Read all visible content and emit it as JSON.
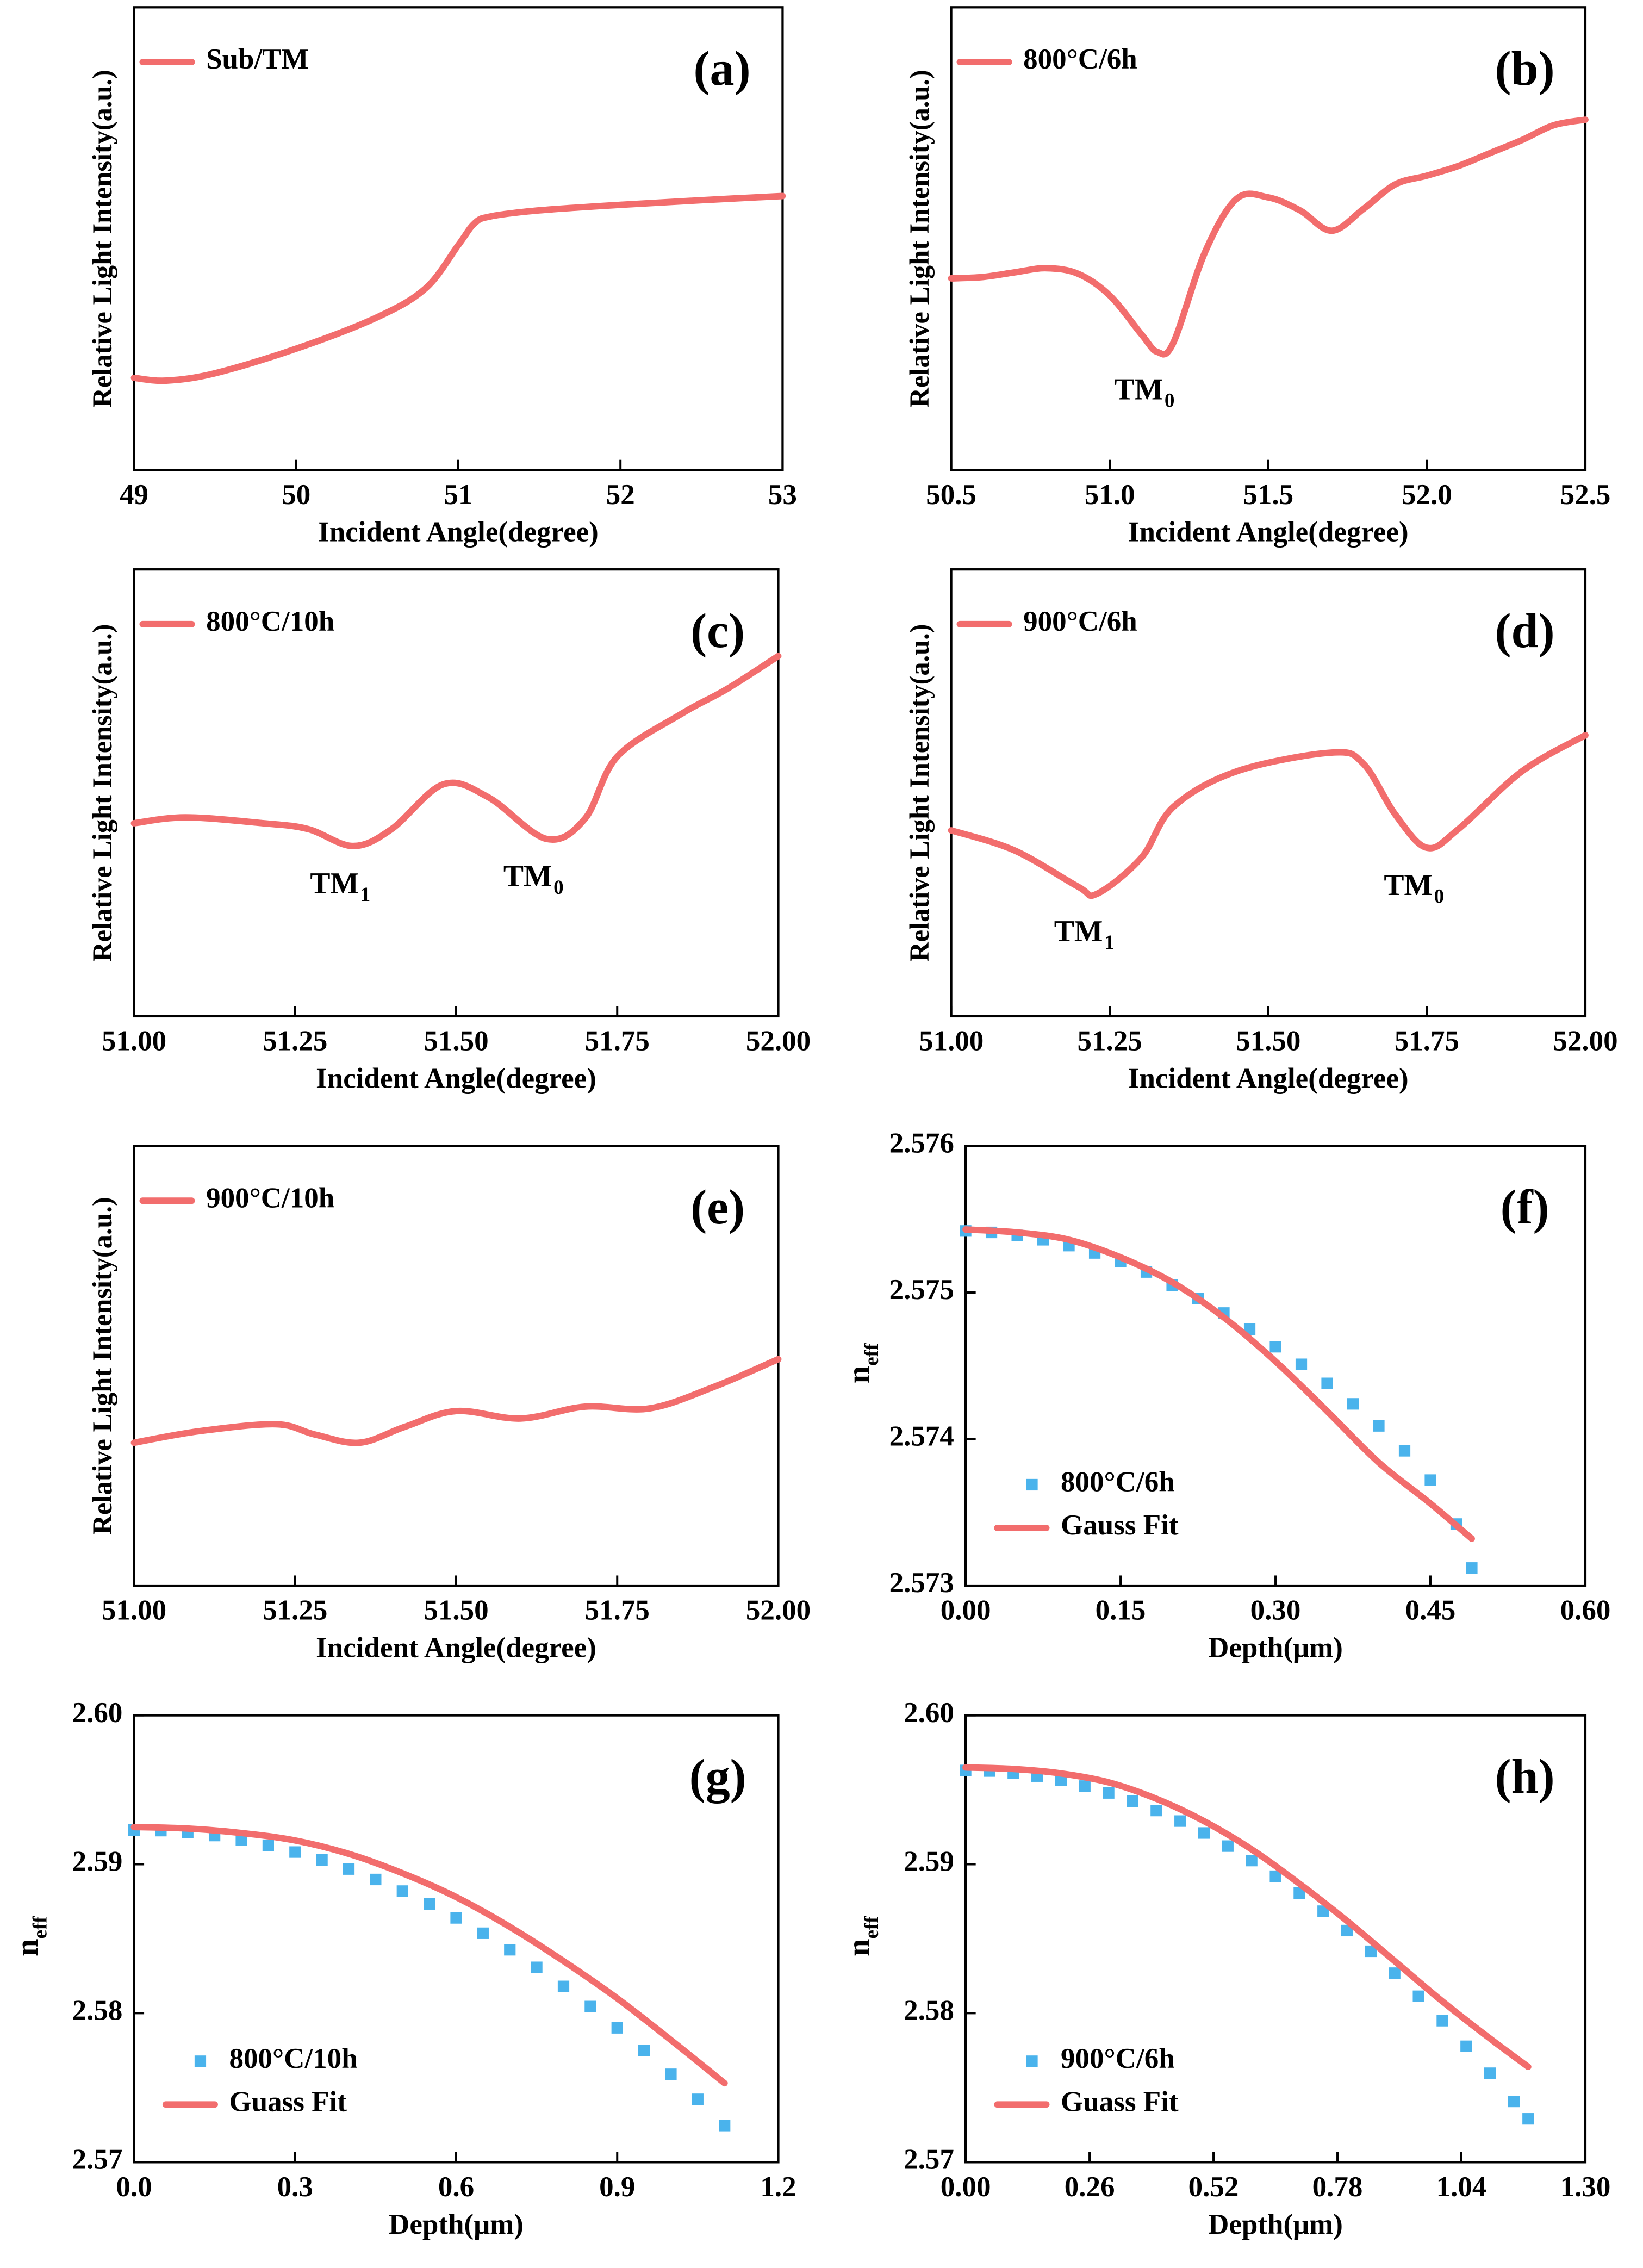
{
  "chart_data": [
    {
      "type": "line",
      "label": "(a)",
      "xlabel": "Incident Angle(degree)",
      "ylabel": "Relative Light Intensity(a.u.)",
      "xlim": [
        49,
        53
      ],
      "xticks": [
        49,
        50,
        51,
        52,
        53
      ],
      "ylim": [
        0,
        1
      ],
      "legend_loc": "upper left",
      "series": [
        {
          "name": "Sub/TM",
          "color": "#f26d6d",
          "style": "line",
          "x": [
            49.0,
            49.2,
            49.5,
            50.0,
            50.5,
            50.8,
            51.0,
            51.1,
            51.2,
            51.5,
            52.0,
            52.5,
            53.0
          ],
          "values": [
            0.199,
            0.193,
            0.209,
            0.262,
            0.33,
            0.393,
            0.486,
            0.533,
            0.548,
            0.561,
            0.573,
            0.583,
            0.592
          ]
        }
      ],
      "annotations": []
    },
    {
      "type": "line",
      "label": "(b)",
      "xlabel": "Incident Angle(degree)",
      "ylabel": "Relative Light Intensity(a.u.)",
      "xlim": [
        50.5,
        52.5
      ],
      "xticks": [
        50.5,
        {
          "value": 51,
          "label": "51.0"
        },
        51.5,
        {
          "value": 52,
          "label": "52.0"
        },
        52.5
      ],
      "ylim": [
        0,
        1
      ],
      "legend_loc": "upper left",
      "series": [
        {
          "name": "800°C/6h",
          "color": "#f26d6d",
          "style": "line",
          "x": [
            50.5,
            50.6,
            50.7,
            50.8,
            50.9,
            51.0,
            51.1,
            51.15,
            51.2,
            51.3,
            51.4,
            51.5,
            51.6,
            51.7,
            51.8,
            51.9,
            52.0,
            52.1,
            52.2,
            52.3,
            52.4,
            52.5
          ],
          "values": [
            0.414,
            0.417,
            0.427,
            0.436,
            0.424,
            0.377,
            0.293,
            0.255,
            0.274,
            0.47,
            0.586,
            0.589,
            0.561,
            0.517,
            0.564,
            0.617,
            0.636,
            0.657,
            0.685,
            0.713,
            0.745,
            0.757
          ]
        }
      ],
      "annotations": [
        {
          "text": "TM",
          "subscript": "0",
          "x": 51.15
        }
      ]
    },
    {
      "type": "line",
      "label": "(c)",
      "xlabel": "Incident Angle(degree)",
      "ylabel": "Relative Light Intensity(a.u.)",
      "xlim": [
        51,
        52
      ],
      "xticks": [
        {
          "value": 51,
          "label": "51.00"
        },
        51.25,
        {
          "value": 51.5,
          "label": "51.50"
        },
        51.75,
        {
          "value": 52,
          "label": "52.00"
        }
      ],
      "ylim": [
        0,
        1
      ],
      "legend_loc": "upper left",
      "series": [
        {
          "name": "800°C/10h",
          "color": "#f26d6d",
          "style": "line",
          "x": [
            51.0,
            51.08,
            51.2,
            51.27,
            51.34,
            51.4,
            51.48,
            51.55,
            51.64,
            51.7,
            51.75,
            51.85,
            51.92,
            52.0
          ],
          "values": [
            0.432,
            0.445,
            0.432,
            0.419,
            0.381,
            0.419,
            0.519,
            0.49,
            0.397,
            0.442,
            0.581,
            0.677,
            0.732,
            0.806
          ]
        }
      ],
      "annotations": [
        {
          "text": "TM",
          "subscript": "1",
          "x": 51.34
        },
        {
          "text": "TM",
          "subscript": "0",
          "x": 51.64
        }
      ]
    },
    {
      "type": "line",
      "label": "(d)",
      "xlabel": "Incident Angle(degree)",
      "ylabel": "Relative Light Intensity(a.u.)",
      "xlim": [
        51,
        52
      ],
      "xticks": [
        {
          "value": 51,
          "label": "51.00"
        },
        51.25,
        {
          "value": 51.5,
          "label": "51.50"
        },
        51.75,
        {
          "value": 52,
          "label": "52.00"
        }
      ],
      "ylim": [
        0,
        1
      ],
      "legend_loc": "upper left",
      "series": [
        {
          "name": "900°C/6h",
          "color": "#f26d6d",
          "style": "line",
          "x": [
            51.0,
            51.1,
            51.2,
            51.23,
            51.3,
            51.35,
            51.45,
            51.6,
            51.65,
            51.7,
            51.75,
            51.8,
            51.9,
            52.0
          ],
          "values": [
            0.416,
            0.371,
            0.29,
            0.274,
            0.355,
            0.468,
            0.548,
            0.59,
            0.565,
            0.452,
            0.377,
            0.419,
            0.548,
            0.629
          ]
        }
      ],
      "annotations": [
        {
          "text": "TM",
          "subscript": "1",
          "x": 51.23
        },
        {
          "text": "TM",
          "subscript": "0",
          "x": 51.75
        }
      ]
    },
    {
      "type": "line",
      "label": "(e)",
      "xlabel": "Incident Angle(degree)",
      "ylabel": "Relative Light Intensity(a.u.)",
      "xlim": [
        51,
        52
      ],
      "xticks": [
        {
          "value": 51,
          "label": "51.00"
        },
        51.25,
        {
          "value": 51.5,
          "label": "51.50"
        },
        51.75,
        {
          "value": 52,
          "label": "52.00"
        }
      ],
      "ylim": [
        0,
        1
      ],
      "legend_loc": "upper left",
      "series": [
        {
          "name": "900°C/10h",
          "color": "#f26d6d",
          "style": "line",
          "x": [
            51.0,
            51.1,
            51.22,
            51.28,
            51.35,
            51.42,
            51.5,
            51.6,
            51.7,
            51.8,
            51.9,
            52.0
          ],
          "values": [
            0.325,
            0.351,
            0.367,
            0.344,
            0.325,
            0.361,
            0.397,
            0.38,
            0.407,
            0.403,
            0.452,
            0.515
          ]
        }
      ],
      "annotations": []
    },
    {
      "type": "scatter",
      "label": "(f)",
      "xlabel": "Depth(μm)",
      "ylabel": "n",
      "ylabel_subscript": "eff",
      "xlim": [
        0,
        0.6
      ],
      "xticks": [
        {
          "value": 0,
          "label": "0.00"
        },
        0.15,
        {
          "value": 0.3,
          "label": "0.30"
        },
        0.45,
        {
          "value": 0.6,
          "label": "0.60"
        }
      ],
      "ylim": [
        2.573,
        2.576
      ],
      "yticks": [
        2.573,
        2.574,
        2.575,
        2.576
      ],
      "legend_loc": "lower left",
      "series": [
        {
          "name": "800°C/6h",
          "color": "#4ab3ec",
          "style": "square",
          "x": [
            0,
            0.025,
            0.05,
            0.075,
            0.1,
            0.125,
            0.15,
            0.175,
            0.2,
            0.225,
            0.25,
            0.275,
            0.3,
            0.325,
            0.35,
            0.375,
            0.4,
            0.425,
            0.45,
            0.475,
            0.49
          ],
          "values": [
            2.57542,
            2.57541,
            2.57539,
            2.57536,
            2.57532,
            2.57527,
            2.57521,
            2.57514,
            2.57505,
            2.57496,
            2.57486,
            2.57475,
            2.57463,
            2.57451,
            2.57438,
            2.57424,
            2.57409,
            2.57392,
            2.57372,
            2.57342,
            2.57312
          ]
        },
        {
          "name": "Gauss Fit",
          "color": "#f26d6d",
          "style": "line",
          "x": [
            0,
            0.05,
            0.1,
            0.15,
            0.2,
            0.25,
            0.3,
            0.35,
            0.4,
            0.45,
            0.49
          ],
          "values": [
            2.57543,
            2.57541,
            2.57536,
            2.57524,
            2.57507,
            2.57483,
            2.57453,
            2.57419,
            2.57384,
            2.57356,
            2.57332
          ]
        }
      ],
      "annotations": []
    },
    {
      "type": "scatter",
      "label": "(g)",
      "xlabel": "Depth(μm)",
      "ylabel": "n",
      "ylabel_subscript": "eff",
      "xlim": [
        0,
        1.2
      ],
      "xticks": [
        {
          "value": 0,
          "label": "0.0"
        },
        0.3,
        0.6,
        0.9,
        1.2
      ],
      "ylim": [
        2.57,
        2.6
      ],
      "yticks": [
        2.57,
        2.58,
        2.59,
        {
          "value": 2.6,
          "label": "2.60"
        }
      ],
      "legend_loc": "lower left",
      "series": [
        {
          "name": "800°C/10h",
          "color": "#4ab3ec",
          "style": "square",
          "x": [
            0,
            0.05,
            0.1,
            0.15,
            0.2,
            0.25,
            0.3,
            0.35,
            0.4,
            0.45,
            0.5,
            0.55,
            0.6,
            0.65,
            0.7,
            0.75,
            0.8,
            0.85,
            0.9,
            0.95,
            1.0,
            1.05,
            1.1
          ],
          "values": [
            2.5923,
            2.59226,
            2.59214,
            2.59193,
            2.59164,
            2.59128,
            2.59082,
            2.59029,
            2.58968,
            2.58898,
            2.5882,
            2.58734,
            2.5864,
            2.58537,
            2.58426,
            2.58308,
            2.5818,
            2.58045,
            2.57902,
            2.5775,
            2.5759,
            2.57422,
            2.57246
          ]
        },
        {
          "name": "Guass Fit",
          "color": "#f26d6d",
          "style": "line",
          "x": [
            0,
            0.1,
            0.2,
            0.3,
            0.4,
            0.5,
            0.6,
            0.7,
            0.8,
            0.9,
            1.0,
            1.1
          ],
          "values": [
            2.5925,
            2.5924,
            2.5921,
            2.5916,
            2.5907,
            2.5894,
            2.5878,
            2.5858,
            2.5835,
            2.581,
            2.5782,
            2.5753
          ]
        }
      ],
      "annotations": []
    },
    {
      "type": "scatter",
      "label": "(h)",
      "xlabel": "Depth(μm)",
      "ylabel": "n",
      "ylabel_subscript": "eff",
      "xlim": [
        0,
        1.3
      ],
      "xticks": [
        {
          "value": 0,
          "label": "0.00"
        },
        0.26,
        0.52,
        0.78,
        1.04,
        {
          "value": 1.3,
          "label": "1.30"
        }
      ],
      "ylim": [
        2.57,
        2.6
      ],
      "yticks": [
        2.57,
        2.58,
        2.59,
        {
          "value": 2.6,
          "label": "2.60"
        }
      ],
      "legend_loc": "lower left",
      "series": [
        {
          "name": "900°C/6h",
          "color": "#4ab3ec",
          "style": "square",
          "x": [
            0,
            0.05,
            0.1,
            0.15,
            0.2,
            0.25,
            0.3,
            0.35,
            0.4,
            0.45,
            0.5,
            0.55,
            0.6,
            0.65,
            0.7,
            0.75,
            0.8,
            0.85,
            0.9,
            0.95,
            1.0,
            1.05,
            1.1,
            1.15,
            1.18
          ],
          "values": [
            2.5963,
            2.59626,
            2.59613,
            2.59592,
            2.59563,
            2.59525,
            2.59479,
            2.59424,
            2.59361,
            2.5929,
            2.5921,
            2.59122,
            2.59025,
            2.5892,
            2.58807,
            2.58685,
            2.58555,
            2.58416,
            2.58269,
            2.58114,
            2.5795,
            2.57778,
            2.57597,
            2.57408,
            2.57291
          ]
        },
        {
          "name": "Guass Fit",
          "color": "#f26d6d",
          "style": "line",
          "x": [
            0,
            0.1,
            0.2,
            0.3,
            0.4,
            0.5,
            0.6,
            0.7,
            0.8,
            0.9,
            1.0,
            1.1,
            1.18
          ],
          "values": [
            2.5965,
            2.5964,
            2.5961,
            2.5955,
            2.5944,
            2.5929,
            2.591,
            2.5887,
            2.5862,
            2.5835,
            2.5808,
            2.5783,
            2.5764
          ]
        }
      ],
      "annotations": []
    }
  ]
}
